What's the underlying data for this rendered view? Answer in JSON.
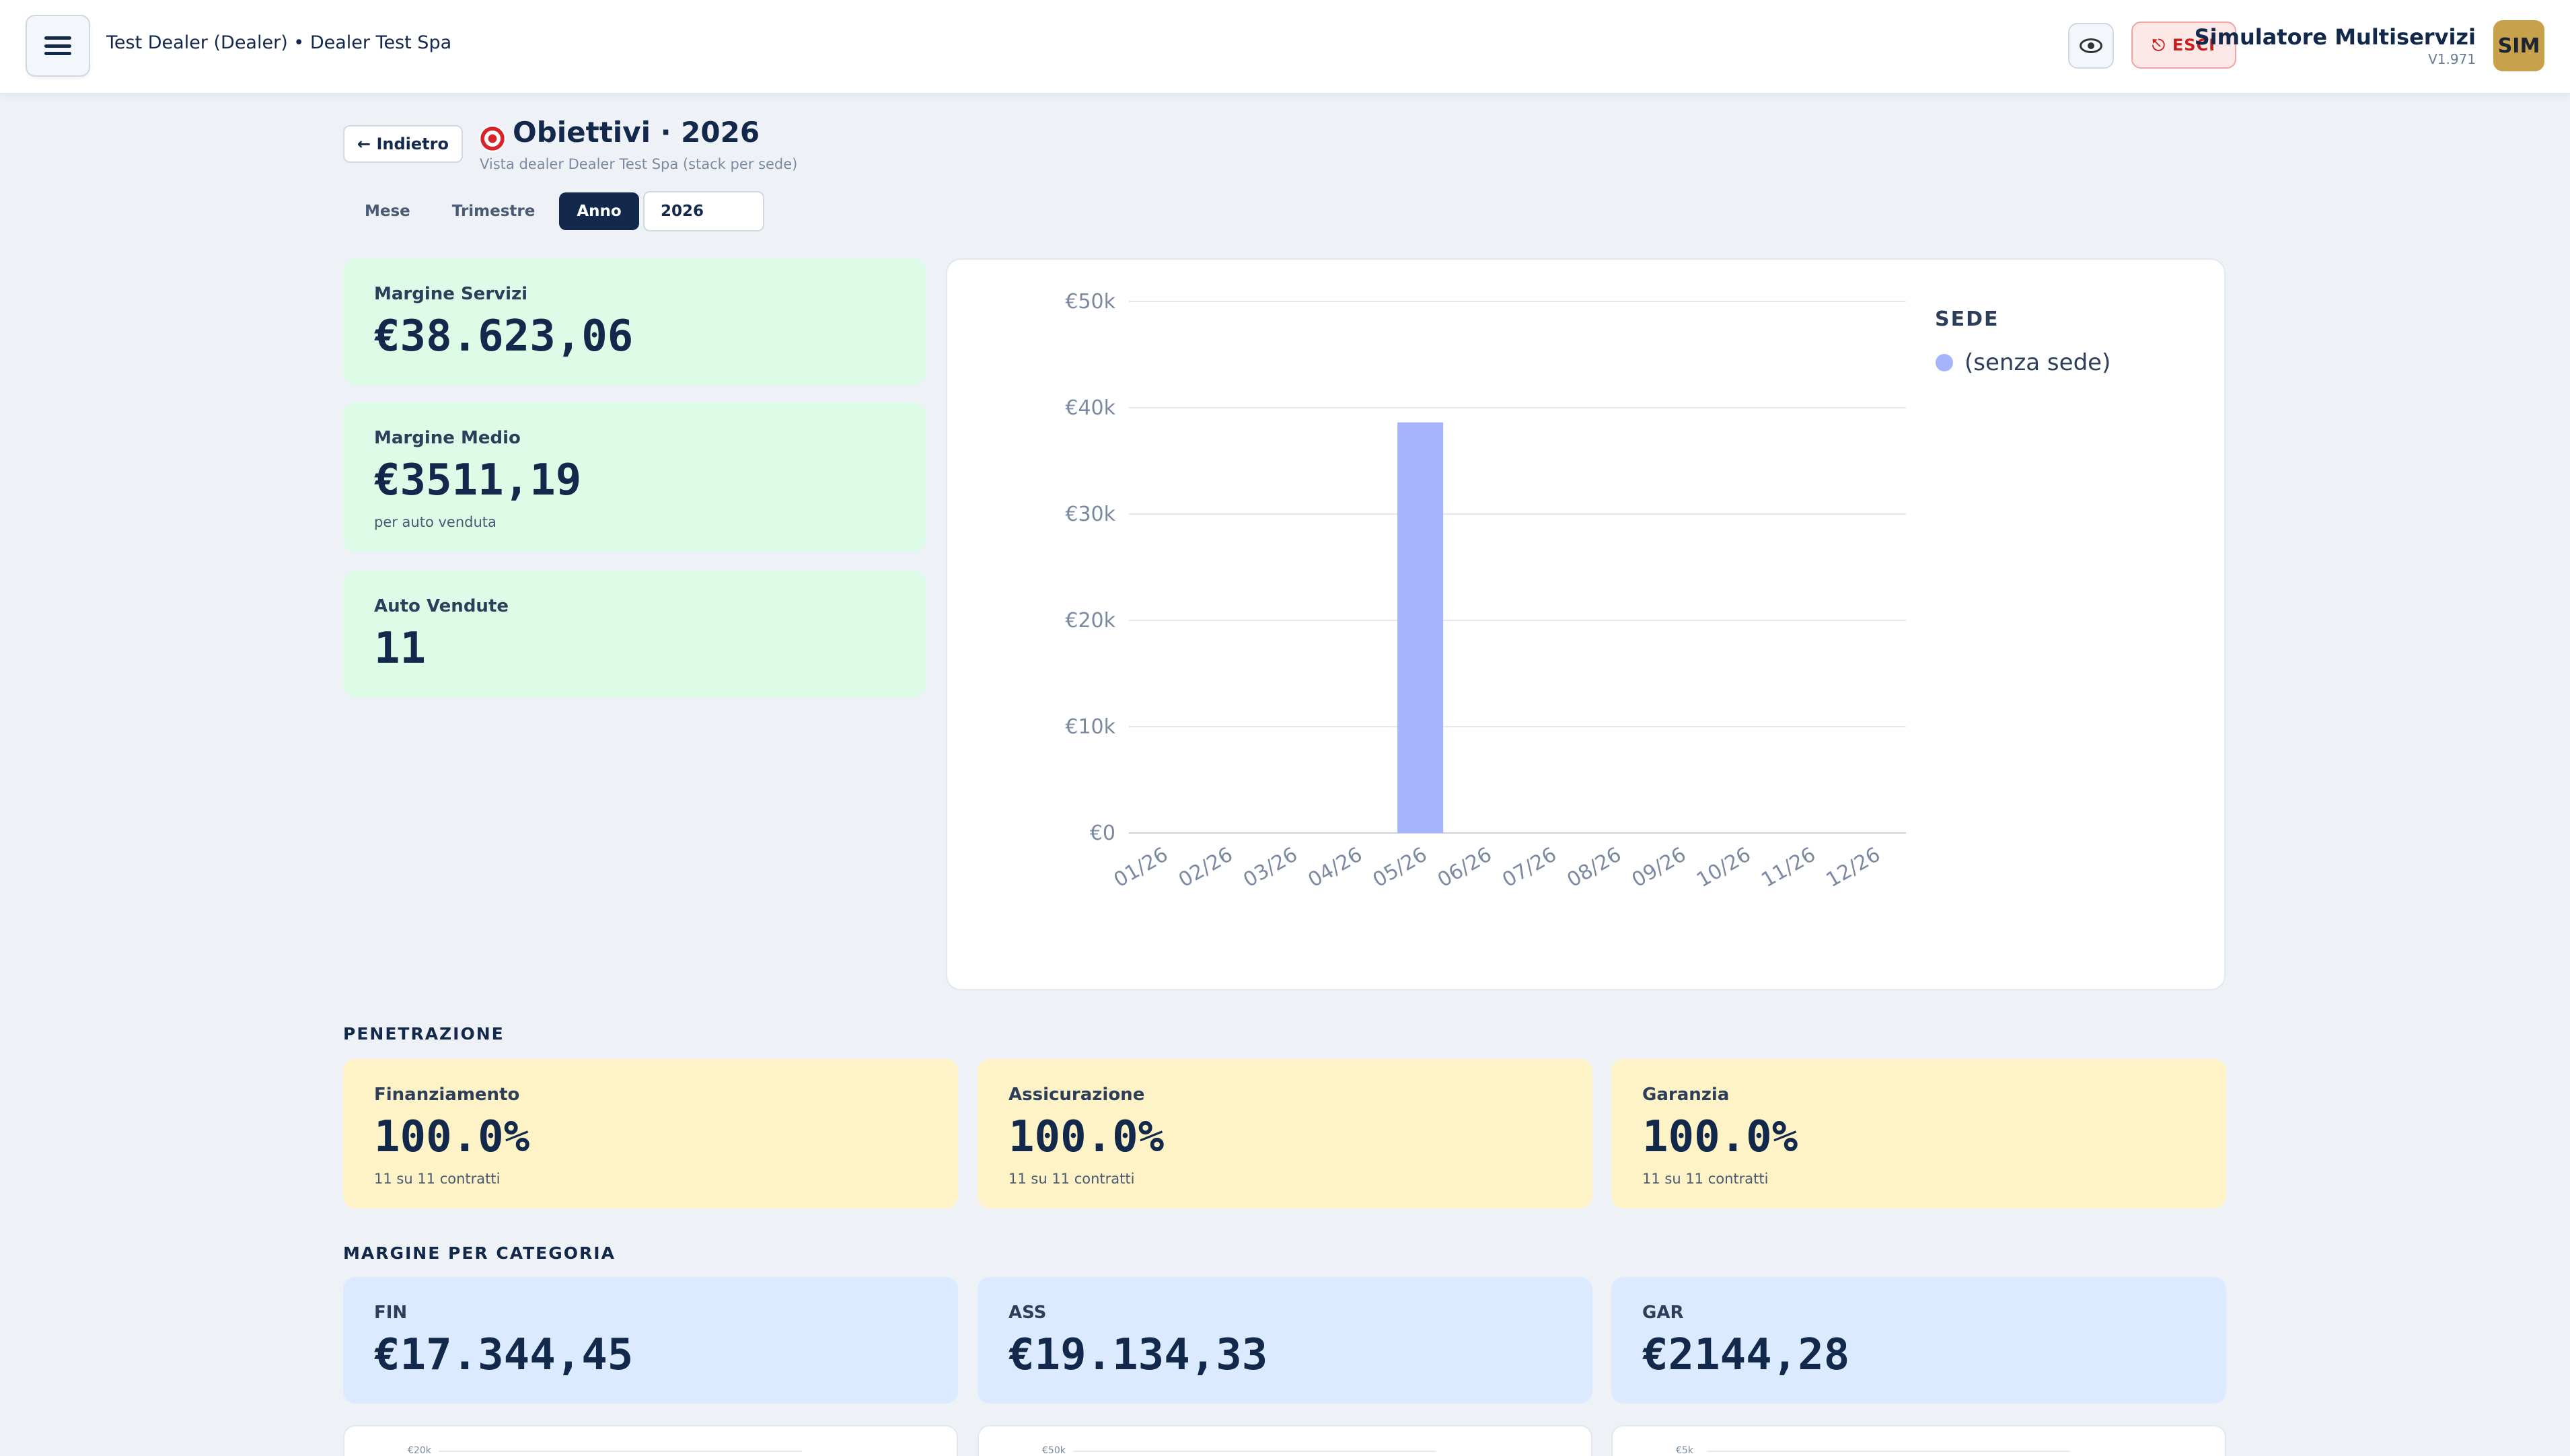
{
  "header": {
    "breadcrumb": "Test Dealer (Dealer) • Dealer Test Spa",
    "esci_label": "ESCI",
    "app_title": "Simulatore Multiservizi",
    "app_version": "V1.971",
    "avatar": "SIM",
    "icons": [
      "menu-icon",
      "eye-icon",
      "power-icon"
    ]
  },
  "page": {
    "back_label": "← Indietro",
    "title": "Obiettivi · 2026",
    "subtitle": "Vista dealer Dealer Test Spa (stack per sede)",
    "tabs": [
      {
        "label": "Mese",
        "active": false
      },
      {
        "label": "Trimestre",
        "active": false
      },
      {
        "label": "Anno",
        "active": true
      }
    ],
    "year_value": "2026"
  },
  "kpis": [
    {
      "label": "Margine Servizi",
      "value": "€38.623,06",
      "sub": ""
    },
    {
      "label": "Margine Medio",
      "value": "€3511,19",
      "sub": "per auto venduta"
    },
    {
      "label": "Auto Vendute",
      "value": "11",
      "sub": ""
    }
  ],
  "chart_data": {
    "type": "bar",
    "categories": [
      "01/26",
      "02/26",
      "03/26",
      "04/26",
      "05/26",
      "06/26",
      "07/26",
      "08/26",
      "09/26",
      "10/26",
      "11/26",
      "12/26"
    ],
    "series": [
      {
        "name": "(senza sede)",
        "values": [
          0,
          0,
          0,
          0,
          38623.06,
          0,
          0,
          0,
          0,
          0,
          0,
          0
        ],
        "color": "#a5b4fc"
      }
    ],
    "y_ticks": [
      "€0",
      "€10k",
      "€20k",
      "€30k",
      "€40k",
      "€50k"
    ],
    "ylim": [
      0,
      50000
    ],
    "legend_title": "SEDE",
    "legend_position": "right",
    "grid": true
  },
  "penetrazione": {
    "title": "PENETRAZIONE",
    "cards": [
      {
        "label": "Finanziamento",
        "value": "100.0%",
        "sub": "11 su 11 contratti"
      },
      {
        "label": "Assicurazione",
        "value": "100.0%",
        "sub": "11 su 11 contratti"
      },
      {
        "label": "Garanzia",
        "value": "100.0%",
        "sub": "11 su 11 contratti"
      }
    ]
  },
  "margine_categoria": {
    "title": "MARGINE PER CATEGORIA",
    "cards": [
      {
        "label": "FIN",
        "value": "€17.344,45"
      },
      {
        "label": "ASS",
        "value": "€19.134,33"
      },
      {
        "label": "GAR",
        "value": "€2144,28"
      }
    ]
  },
  "mini_charts": [
    {
      "top_tick": "€20k"
    },
    {
      "top_tick": "€50k"
    },
    {
      "top_tick": "€5k"
    }
  ]
}
